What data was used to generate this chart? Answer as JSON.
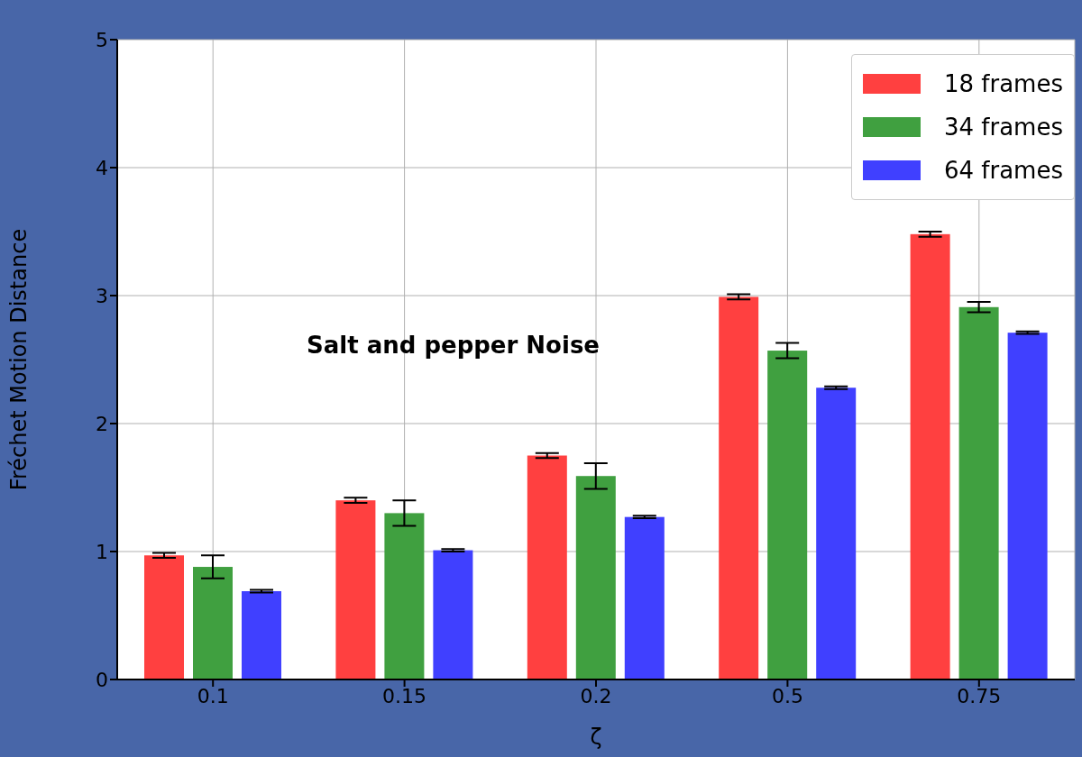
{
  "chart_data": {
    "type": "bar",
    "xlabel": "ζ",
    "ylabel": "Fréchet Motion Distance",
    "annotations": [
      "Salt and pepper Noise"
    ],
    "categories": [
      "0.1",
      "0.15",
      "0.2",
      "0.5",
      "0.75"
    ],
    "series": [
      {
        "name": "18 frames",
        "color": "#ff4040",
        "values": [
          0.97,
          1.4,
          1.75,
          2.99,
          3.48
        ],
        "errors": [
          0.02,
          0.02,
          0.02,
          0.02,
          0.02
        ]
      },
      {
        "name": "34 frames",
        "color": "#40a040",
        "values": [
          0.88,
          1.3,
          1.59,
          2.57,
          2.91
        ],
        "errors": [
          0.09,
          0.1,
          0.1,
          0.06,
          0.04
        ]
      },
      {
        "name": "64 frames",
        "color": "#4040ff",
        "values": [
          0.69,
          1.01,
          1.27,
          2.28,
          2.71
        ],
        "errors": [
          0.01,
          0.01,
          0.01,
          0.01,
          0.01
        ]
      }
    ],
    "ylim": [
      0,
      5
    ],
    "yticks": [
      0,
      1,
      2,
      3,
      4,
      5
    ],
    "grid": true,
    "legend": "top right"
  }
}
